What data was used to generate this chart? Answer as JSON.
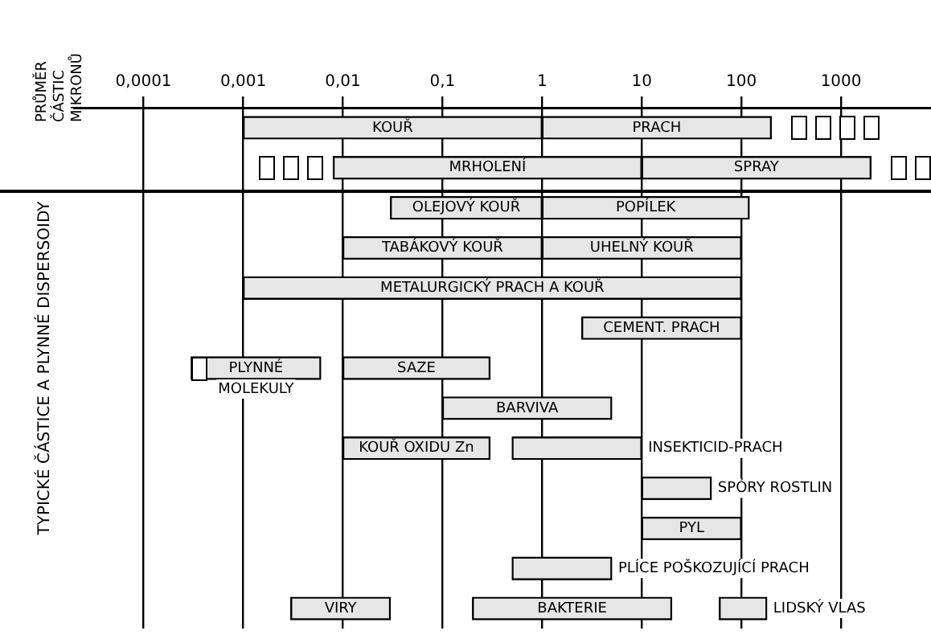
{
  "chart_data": {
    "type": "bar",
    "orientation": "horizontal",
    "annotations": [
      "PRŮMĚR ČÁSTIC MIKRONŮ"
    ],
    "ylabel": "TYPICKÉ ČÁSTICE A PLYNNÉ DISPERSOIDY",
    "categories": [
      null,
      null,
      null,
      null,
      null,
      null,
      null,
      null,
      null,
      null,
      null,
      null,
      null
    ],
    "log": "x",
    "xlim": [
      2e-05,
      8000
    ],
    "xticks": [
      {
        "value": 0.0001,
        "label": "0,0001"
      },
      {
        "value": 0.001,
        "label": "0,001"
      },
      {
        "value": 0.01,
        "label": "0,01"
      },
      {
        "value": 0.1,
        "label": "0,1"
      },
      1,
      10,
      100,
      1000
    ],
    "grid": "x",
    "legend": false,
    "series": [
      {
        "color": "#e6e6e6",
        "base": [
          0.001,
          0.008,
          0.03,
          0.01,
          0.001,
          null,
          0.0003,
          null,
          0.01,
          null,
          null,
          null,
          0.003
        ],
        "values": [
          0.999,
          9.992,
          0.97,
          0.99,
          99.999,
          null,
          0.0057,
          null,
          0.29,
          null,
          null,
          null,
          0.027
        ],
        "value_labels": [
          "KOUŘ",
          "MRHOLENÍ",
          "OLEJOVÝ KOUŘ",
          "TABÁKOVÝ KOUŘ",
          "METALURGICKÝ PRACH A KOUŘ",
          null,
          "PLYNNÉ MOLEKULY",
          null,
          "KOUŘ OXIDU Zn",
          null,
          null,
          null,
          "VIRY"
        ]
      },
      {
        "color": "#e6e6e6",
        "base": [
          1,
          10,
          1,
          1,
          null,
          2.5,
          0.01,
          0.1,
          0.5,
          10,
          10,
          0.5,
          0.2
        ],
        "values": [
          199,
          1990,
          119,
          99,
          null,
          97.5,
          0.29,
          4.9,
          9.5,
          40,
          90,
          4.5,
          19.8
        ],
        "value_labels": [
          "PRACH",
          "SPRAY",
          "POPÍLEK",
          "UHELNÝ KOUŘ",
          null,
          "CEMENT. PRACH",
          "SAZE",
          "BARVIVA",
          "INSEKTICID-PRACH",
          "SPÓRY ROSTLIN",
          "PYL",
          "PLÍCE POŠKOZUJÍCÍ PRACH",
          "BAKTERIE"
        ]
      },
      {
        "color": "#e6e6e6",
        "base": [
          null,
          null,
          null,
          null,
          null,
          null,
          null,
          null,
          null,
          null,
          null,
          null,
          60
        ],
        "values": [
          null,
          null,
          null,
          null,
          null,
          null,
          null,
          null,
          null,
          null,
          null,
          null,
          120
        ],
        "value_labels": [
          null,
          null,
          null,
          null,
          null,
          null,
          null,
          null,
          null,
          null,
          null,
          null,
          "LIDSKÝ VLAS"
        ]
      }
    ]
  }
}
